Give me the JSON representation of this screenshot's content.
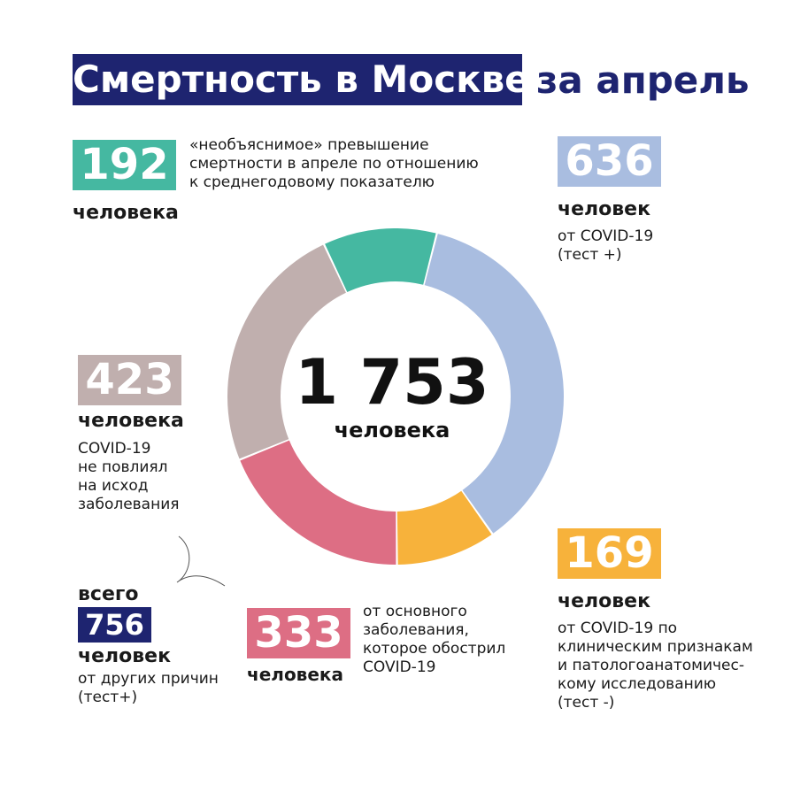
{
  "title": {
    "main": "Смертность в Москве",
    "suffix": "за апрель"
  },
  "center": {
    "value": "1 753",
    "unit": "человека"
  },
  "blocks": {
    "unexplained": {
      "value": "192",
      "unit": "человека",
      "desc": "«необъяснимое» превышение\nсмертности в апреле по отношению\nк среднегодовому показателю",
      "color": "#45b8a1"
    },
    "covid_test": {
      "value": "636",
      "unit": "человек",
      "desc": "от COVID-19\n(тест +)",
      "color": "#a9bde0"
    },
    "no_influence": {
      "value": "423",
      "unit": "человека",
      "desc": "COVID-19\nне повлиял\nна исход\nзаболевания",
      "color": "#c0afae"
    },
    "worsened": {
      "value": "333",
      "unit": "человека",
      "desc": "от основного\nзаболевания,\nкоторое обострил\nCOVID-19",
      "color": "#dd6e84"
    },
    "covid_clinical": {
      "value": "169",
      "unit": "человек",
      "desc": "от COVID-19 по\nклиническим признакам\nи патологоанатомичес-\nкому исследованию\n(тест -)",
      "color": "#f7b23b"
    },
    "other": {
      "prefix": "всего",
      "value": "756",
      "unit": "человек",
      "desc": "от других причин\n(тест+)",
      "color": "#1e2470"
    }
  },
  "chart_data": {
    "type": "pie",
    "total": 1753,
    "categories": [
      "192",
      "636",
      "169",
      "333",
      "423"
    ],
    "values": [
      192,
      636,
      169,
      333,
      423
    ],
    "colors": [
      "#45b8a1",
      "#a9bde0",
      "#f7b23b",
      "#dd6e84",
      "#c0afae"
    ]
  }
}
